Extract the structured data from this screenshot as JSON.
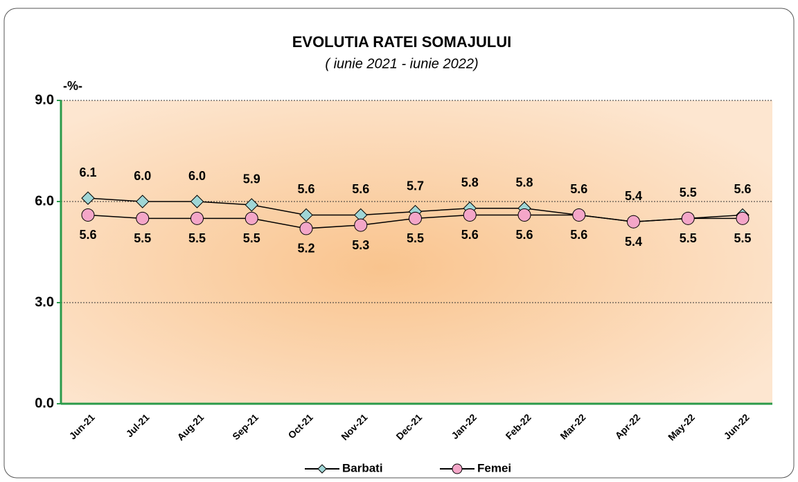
{
  "chart_data": {
    "type": "line",
    "title": "EVOLUTIA RATEI SOMAJULUI",
    "subtitle": "( iunie 2021 - iunie 2022)",
    "y_label": "-%-",
    "categories": [
      "Jun-21",
      "Jul-21",
      "Aug-21",
      "Sep-21",
      "Oct-21",
      "Nov-21",
      "Dec-21",
      "Jan-22",
      "Feb-22",
      "Mar-22",
      "Apr-22",
      "May-22",
      "Jun-22"
    ],
    "series": [
      {
        "name": "Barbati",
        "color": "#9fd6d6",
        "values": [
          6.1,
          6.0,
          6.0,
          5.9,
          5.6,
          5.6,
          5.7,
          5.8,
          5.8,
          5.6,
          5.4,
          5.5,
          5.6
        ],
        "value_labels": [
          "6.1",
          "6.0",
          "6.0",
          "5.9",
          "5.6",
          "5.6",
          "5.7",
          "5.8",
          "5.8",
          "5.6",
          "5.4",
          "5.5",
          "5.6"
        ]
      },
      {
        "name": "Femei",
        "color": "#f4a6c8",
        "values": [
          5.6,
          5.5,
          5.5,
          5.5,
          5.2,
          5.3,
          5.5,
          5.6,
          5.6,
          5.6,
          5.4,
          5.5,
          5.5
        ],
        "value_labels": [
          "5.6",
          "5.5",
          "5.5",
          "5.5",
          "5.2",
          "5.3",
          "5.5",
          "5.6",
          "5.6",
          "5.6",
          "5.4",
          "5.5",
          "5.5"
        ]
      }
    ],
    "ylim": [
      0,
      9
    ],
    "yticks": [
      {
        "value": 0,
        "label": "0.0"
      },
      {
        "value": 3,
        "label": "3.0"
      },
      {
        "value": 6,
        "label": "6.0"
      },
      {
        "value": 9,
        "label": "9.0"
      }
    ],
    "grid": true,
    "legend": "bottom"
  }
}
